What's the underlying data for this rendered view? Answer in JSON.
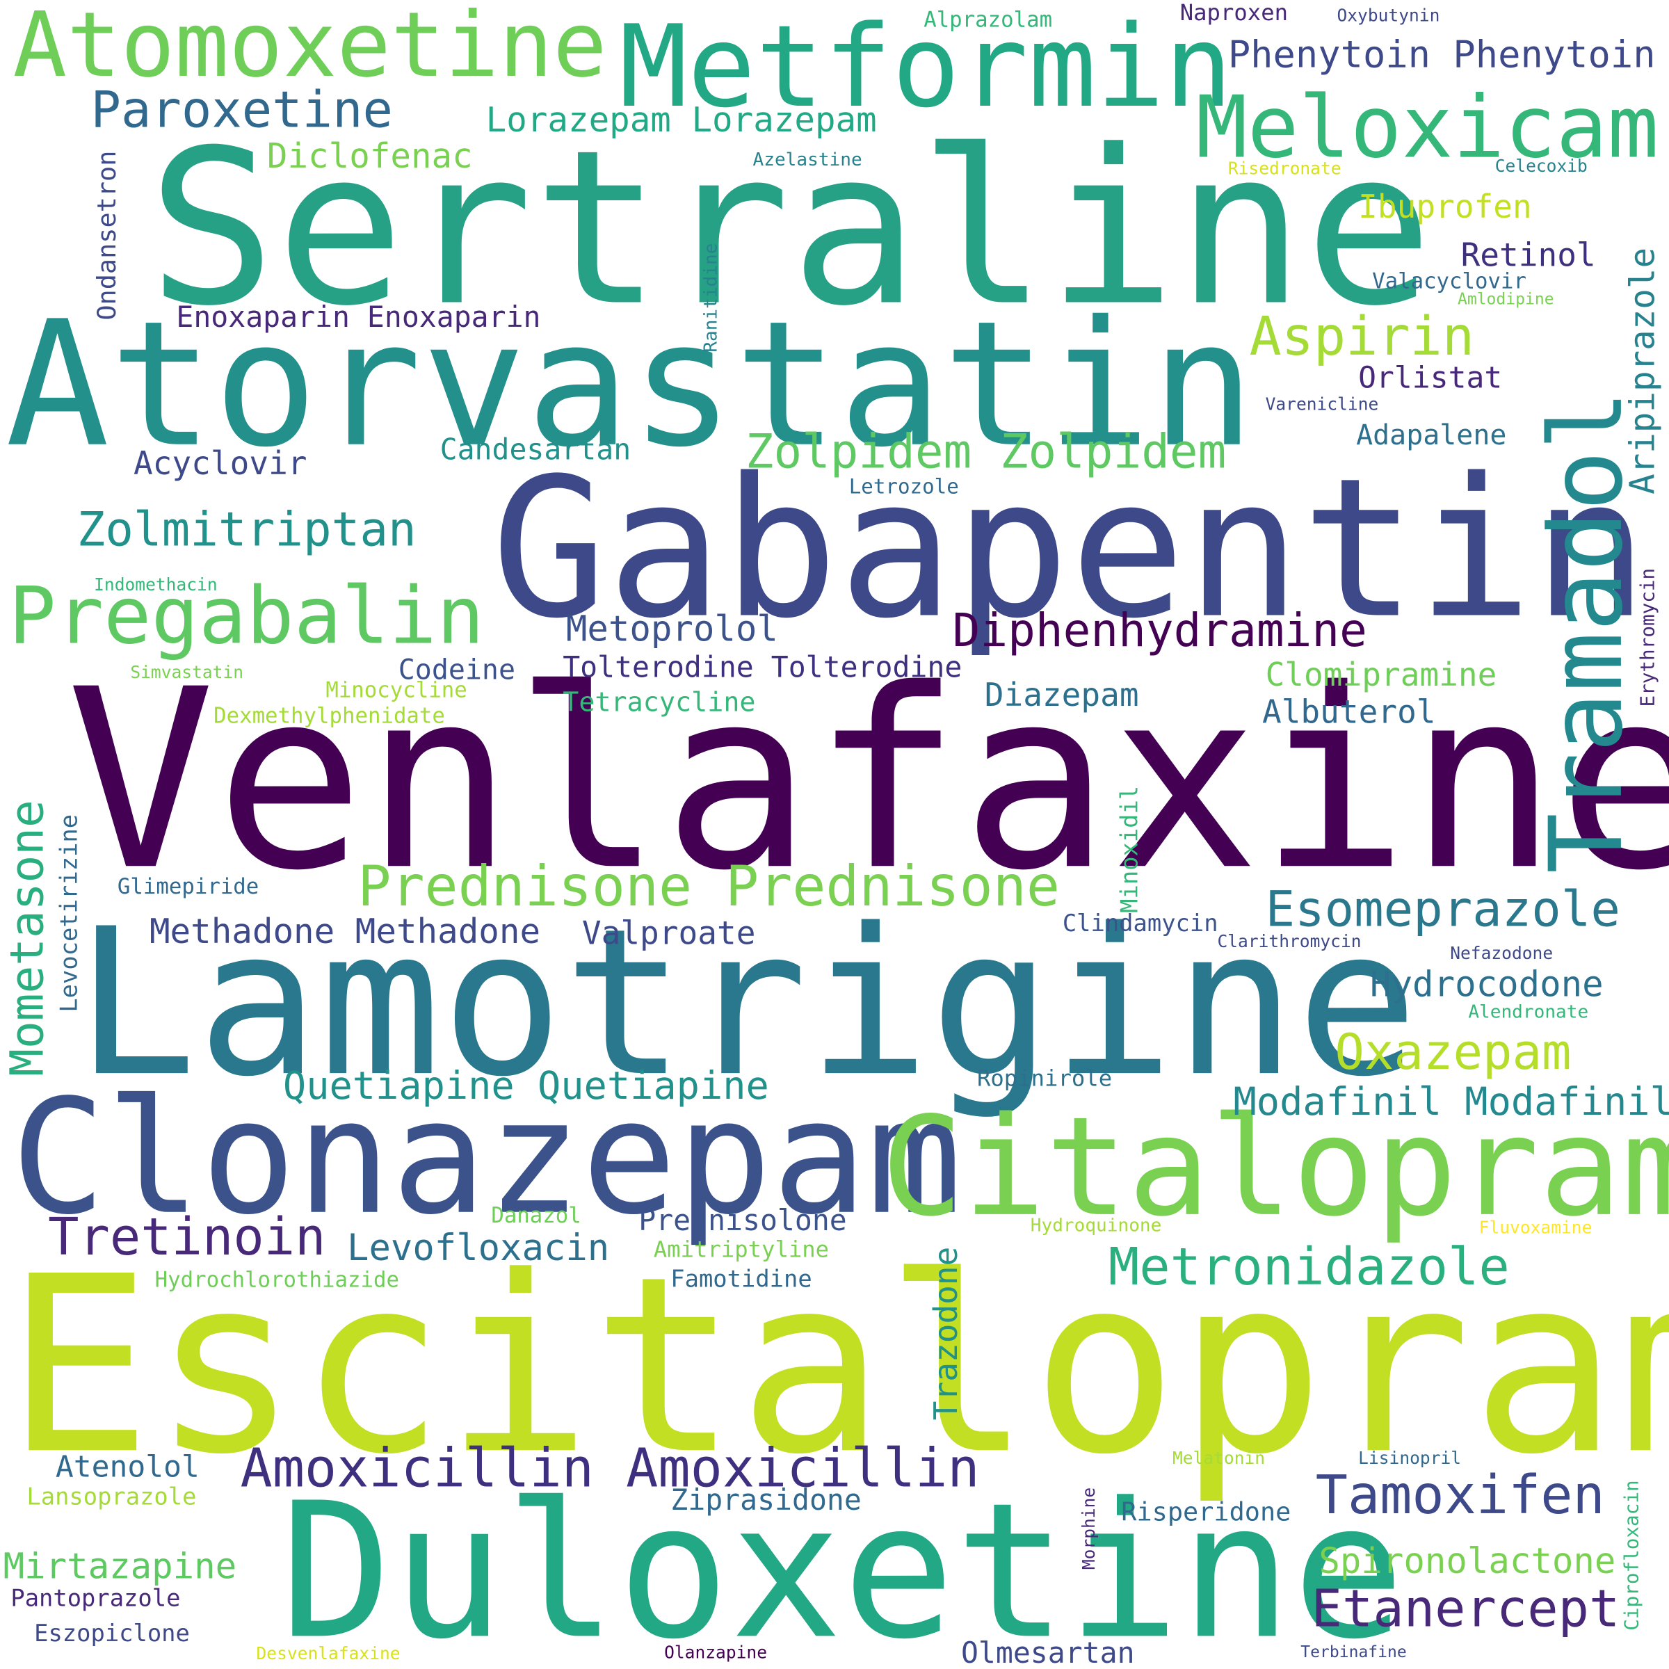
{
  "palette": {
    "p1": "#440154",
    "p2": "#482878",
    "p3": "#3e4989",
    "p4": "#31688e",
    "p5": "#26828e",
    "p6": "#1f9e89",
    "p7": "#35b779",
    "p8": "#6ece58",
    "p9": "#b5de2b",
    "p10": "#fde725"
  },
  "words": [
    {
      "id": "w0",
      "text": "Sertraline"
    },
    {
      "id": "w1",
      "text": "Atorvastatin"
    },
    {
      "id": "w2",
      "text": "Gabapentin"
    },
    {
      "id": "w3",
      "text": "Venlafaxine"
    },
    {
      "id": "w4",
      "text": "Lamotrigine"
    },
    {
      "id": "w5",
      "text": "Escitalopram"
    },
    {
      "id": "w6",
      "text": "Duloxetine"
    },
    {
      "id": "w7",
      "text": "Clonazepam"
    },
    {
      "id": "w8",
      "text": "Citalopram"
    },
    {
      "id": "w9",
      "text": "Metformin"
    },
    {
      "id": "w10",
      "text": "Atomoxetine"
    },
    {
      "id": "w11",
      "text": "Tramadol"
    },
    {
      "id": "w12",
      "text": "Meloxicam"
    },
    {
      "id": "w13",
      "text": "Pregabalin"
    },
    {
      "id": "w14",
      "text": "Paroxetine"
    },
    {
      "id": "w15",
      "text": "Zolmitriptan"
    },
    {
      "id": "w16",
      "text": "Prednisone Prednisone"
    },
    {
      "id": "w17",
      "text": "Zolpidem Zolpidem"
    },
    {
      "id": "w18",
      "text": "Diphenhydramine"
    },
    {
      "id": "w19",
      "text": "Amoxicillin Amoxicillin"
    },
    {
      "id": "w20",
      "text": "Metronidazole"
    },
    {
      "id": "w21",
      "text": "Tamoxifen"
    },
    {
      "id": "w22",
      "text": "Etanercept"
    },
    {
      "id": "w23",
      "text": "Mometasone"
    },
    {
      "id": "w24",
      "text": "Tretinoin"
    },
    {
      "id": "w25",
      "text": "Esomeprazole"
    },
    {
      "id": "w26",
      "text": "Aspirin"
    },
    {
      "id": "w27",
      "text": "Oxazepam"
    },
    {
      "id": "w28",
      "text": "Quetiapine Quetiapine"
    },
    {
      "id": "w29",
      "text": "Modafinil Modafinil"
    },
    {
      "id": "w30",
      "text": "Phenytoin Phenytoin"
    },
    {
      "id": "w31",
      "text": "Trazodone"
    },
    {
      "id": "w32",
      "text": "Aripiprazole"
    },
    {
      "id": "w33",
      "text": "Lorazepam Lorazepam"
    },
    {
      "id": "w34",
      "text": "Levofloxacin"
    },
    {
      "id": "w35",
      "text": "Methadone Methadone"
    },
    {
      "id": "w36",
      "text": "Spironolactone"
    },
    {
      "id": "w37",
      "text": "Hydrocodone"
    },
    {
      "id": "w38",
      "text": "Mirtazapine"
    },
    {
      "id": "w39",
      "text": "Metoprolol"
    },
    {
      "id": "w40",
      "text": "Enoxaparin Enoxaparin"
    },
    {
      "id": "w41",
      "text": "Diclofenac"
    },
    {
      "id": "w42",
      "text": "Acyclovir"
    },
    {
      "id": "w43",
      "text": "Clomipramine"
    },
    {
      "id": "w44",
      "text": "Albuterol"
    },
    {
      "id": "w45",
      "text": "Valproate"
    },
    {
      "id": "w46",
      "text": "Ibuprofen"
    },
    {
      "id": "w47",
      "text": "Retinol"
    },
    {
      "id": "w48",
      "text": "Orlistat"
    },
    {
      "id": "w49",
      "text": "Candesartan"
    },
    {
      "id": "w50",
      "text": "Tolterodine Tolterodine"
    },
    {
      "id": "w51",
      "text": "Diazepam"
    },
    {
      "id": "w52",
      "text": "Ondansetron"
    },
    {
      "id": "w53",
      "text": "Atenolol"
    },
    {
      "id": "w54",
      "text": "Prednisolone"
    },
    {
      "id": "w55",
      "text": "Ziprasidone"
    },
    {
      "id": "w56",
      "text": "Olmesartan"
    },
    {
      "id": "w57",
      "text": "Risperidone"
    },
    {
      "id": "w58",
      "text": "Codeine"
    },
    {
      "id": "w59",
      "text": "Tetracycline"
    },
    {
      "id": "w60",
      "text": "Adapalene"
    },
    {
      "id": "w61",
      "text": "Levocetirizine"
    },
    {
      "id": "w62",
      "text": "Minoxidil"
    },
    {
      "id": "w63",
      "text": "Famotidine"
    },
    {
      "id": "w64",
      "text": "Pantoprazole"
    },
    {
      "id": "w65",
      "text": "Eszopiclone"
    },
    {
      "id": "w66",
      "text": "Lansoprazole"
    },
    {
      "id": "w67",
      "text": "Hydrochlorothiazide"
    },
    {
      "id": "w68",
      "text": "Amitriptyline"
    },
    {
      "id": "w69",
      "text": "Valacyclovir"
    },
    {
      "id": "w70",
      "text": "Clindamycin"
    },
    {
      "id": "w71",
      "text": "Ropinirole"
    },
    {
      "id": "w72",
      "text": "Naproxen"
    },
    {
      "id": "w73",
      "text": "Alprazolam"
    },
    {
      "id": "w74",
      "text": "Erythromycin"
    },
    {
      "id": "w75",
      "text": "Ciprofloxacin"
    },
    {
      "id": "w76",
      "text": "Glimepiride"
    },
    {
      "id": "w77",
      "text": "Dexmethylphenidate"
    },
    {
      "id": "w78",
      "text": "Minocycline"
    },
    {
      "id": "w79",
      "text": "Danazol"
    },
    {
      "id": "w80",
      "text": "Letrozole"
    },
    {
      "id": "w81",
      "text": "Azelastine"
    },
    {
      "id": "w82",
      "text": "Ranitidine"
    },
    {
      "id": "w83",
      "text": "Hydroquinone"
    },
    {
      "id": "w84",
      "text": "Clarithromycin"
    },
    {
      "id": "w85",
      "text": "Indomethacin"
    },
    {
      "id": "w86",
      "text": "Simvastatin"
    },
    {
      "id": "w87",
      "text": "Celecoxib"
    },
    {
      "id": "w88",
      "text": "Risedronate"
    },
    {
      "id": "w89",
      "text": "Oxybutynin"
    },
    {
      "id": "w90",
      "text": "Amlodipine"
    },
    {
      "id": "w91",
      "text": "Varenicline"
    },
    {
      "id": "w92",
      "text": "Nefazodone"
    },
    {
      "id": "w93",
      "text": "Alendronate"
    },
    {
      "id": "w94",
      "text": "Fluvoxamine"
    },
    {
      "id": "w95",
      "text": "Melatonin"
    },
    {
      "id": "w96",
      "text": "Lisinopril"
    },
    {
      "id": "w97",
      "text": "Morphine"
    },
    {
      "id": "w98",
      "text": "Desvenlafaxine"
    },
    {
      "id": "w99",
      "text": "Olanzapine"
    },
    {
      "id": "w100",
      "text": "Terbinafine"
    }
  ]
}
